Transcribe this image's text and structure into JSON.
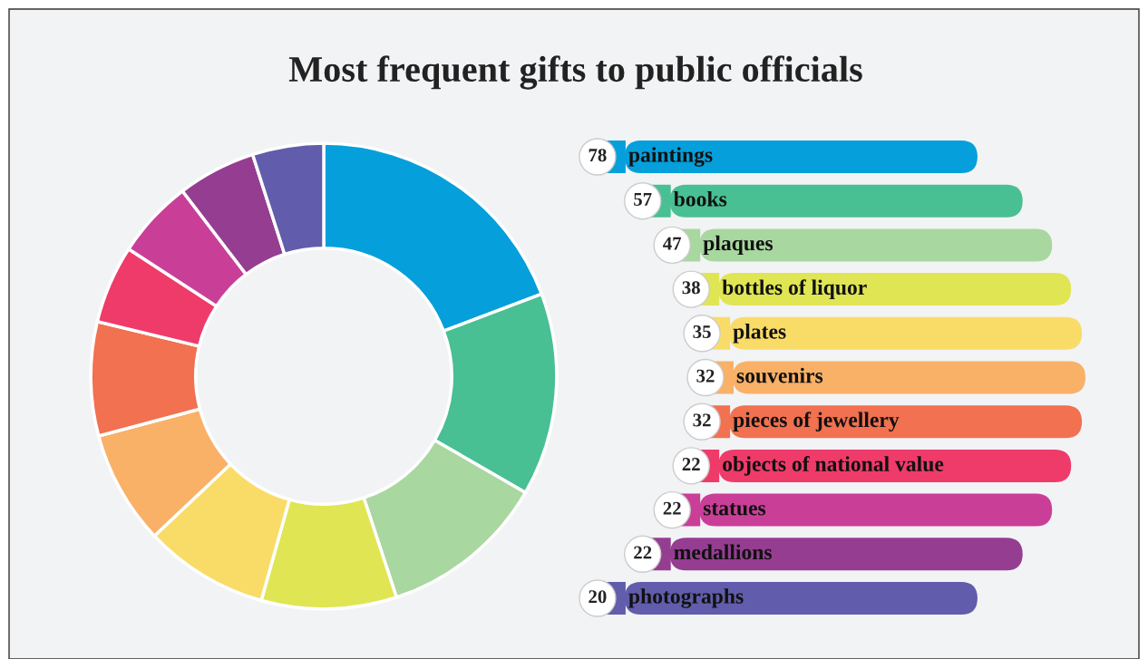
{
  "chart_data": {
    "type": "donut",
    "title": "Most frequent gifts to public officials",
    "categories": [
      "paintings",
      "books",
      "plaques",
      "bottles of liquor",
      "plates",
      "souvenirs",
      "pieces of jewellery",
      "objects of national value",
      "statues",
      "medallions",
      "photographs"
    ],
    "values": [
      78,
      57,
      47,
      38,
      35,
      32,
      32,
      22,
      22,
      22,
      20
    ],
    "colors": [
      "#059fdb",
      "#49bf94",
      "#a8d7a0",
      "#e0e554",
      "#f9dc68",
      "#f9b067",
      "#f17150",
      "#ef3b6a",
      "#c93f98",
      "#953d91",
      "#615cab"
    ],
    "legend": "right",
    "data_labels": true
  }
}
